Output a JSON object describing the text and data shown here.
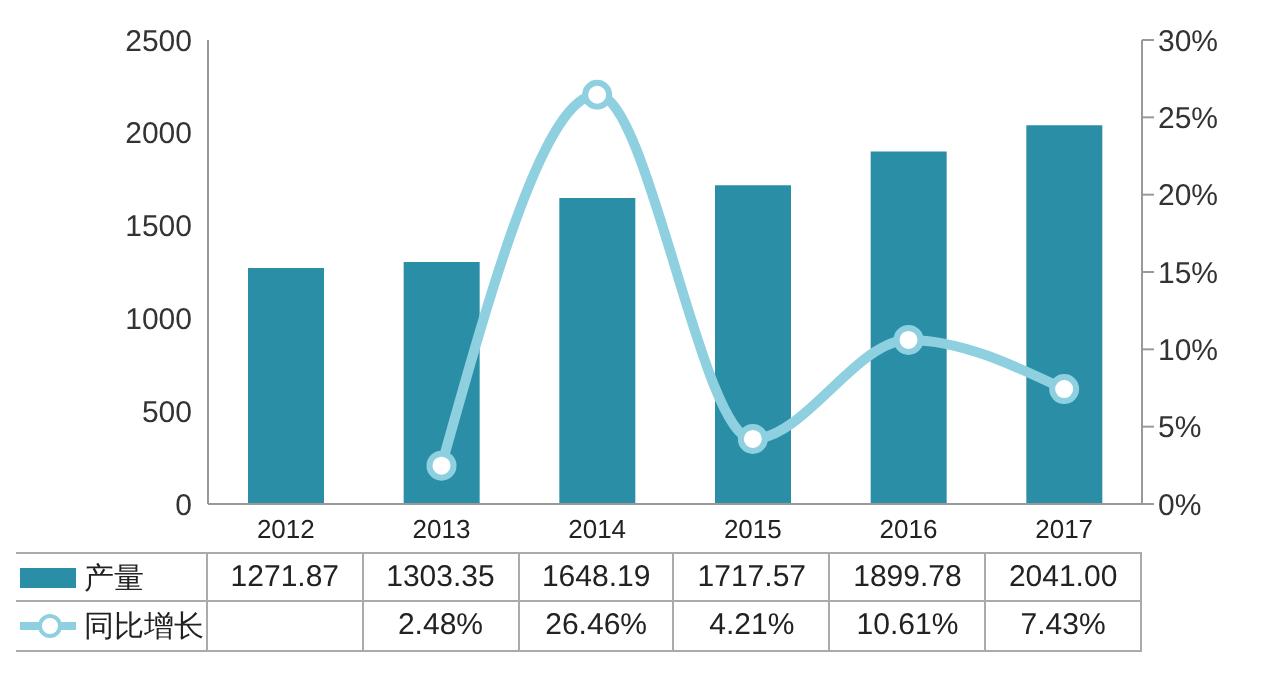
{
  "chart_data": {
    "type": "bar",
    "categories": [
      "2012",
      "2013",
      "2014",
      "2015",
      "2016",
      "2017"
    ],
    "series": [
      {
        "name": "产量",
        "color": "#2a8fa6",
        "values": [
          1271.87,
          1303.35,
          1648.19,
          1717.57,
          1899.78,
          2041.0
        ],
        "value_labels": [
          "1271.87",
          "1303.35",
          "1648.19",
          "1717.57",
          "1899.78",
          "2041.00"
        ]
      },
      {
        "name": "同比增长",
        "type": "line",
        "axis": "y2",
        "color": "#8fd0e0",
        "values": [
          null,
          2.48,
          26.46,
          4.21,
          10.61,
          7.43
        ],
        "value_labels": [
          null,
          "2.48%",
          "26.46%",
          "4.21%",
          "10.61%",
          "7.43%"
        ]
      }
    ],
    "ylim": [
      0,
      2500
    ],
    "yticks": [
      0,
      500,
      1000,
      1500,
      2000,
      2500
    ],
    "y2lim": [
      0,
      30
    ],
    "y2ticks": [
      {
        "value": 0,
        "label": "0%"
      },
      {
        "value": 5,
        "label": "5%"
      },
      {
        "value": 10,
        "label": "10%"
      },
      {
        "value": 15,
        "label": "15%"
      },
      {
        "value": 20,
        "label": "20%"
      },
      {
        "value": 25,
        "label": "25%"
      },
      {
        "value": 30,
        "label": "30%"
      }
    ],
    "legend": "bottom left",
    "marker": "circle",
    "line_style": "solid"
  }
}
